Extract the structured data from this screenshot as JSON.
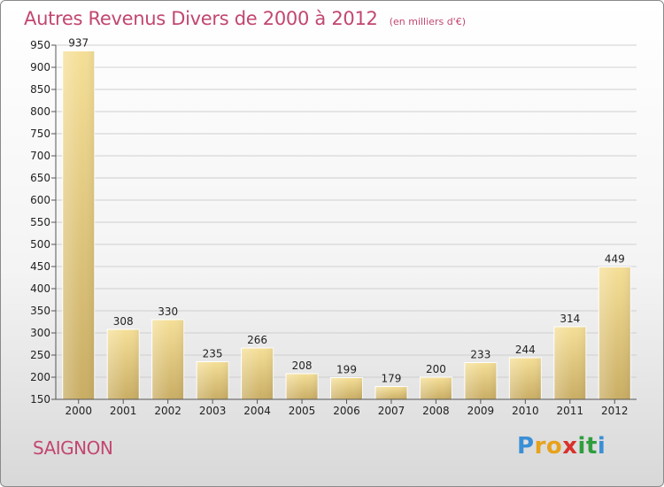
{
  "title": "Autres Revenus Divers de 2000 à 2012",
  "subtitle": "(en milliers d'€)",
  "place": "SAIGNON",
  "logo": {
    "letters": [
      "P",
      "r",
      "o",
      "x",
      "i",
      "t",
      "i"
    ],
    "colors": [
      "#3b8fd6",
      "#e7a21c",
      "#e7a21c",
      "#d9312b",
      "#2f9e3e",
      "#2f9e3e",
      "#3b8fd6"
    ]
  },
  "colors": {
    "title": "#c2476e",
    "bar_light": "#f5df97",
    "bar_dark": "#c9ad64"
  },
  "chart_data": {
    "type": "bar",
    "categories": [
      "2000",
      "2001",
      "2002",
      "2003",
      "2004",
      "2005",
      "2006",
      "2007",
      "2008",
      "2009",
      "2010",
      "2011",
      "2012"
    ],
    "values": [
      937,
      308,
      330,
      235,
      266,
      208,
      199,
      179,
      200,
      233,
      244,
      314,
      449
    ],
    "ylim": [
      150,
      950
    ],
    "yticks": [
      150,
      200,
      250,
      300,
      350,
      400,
      450,
      500,
      550,
      600,
      650,
      700,
      750,
      800,
      850,
      900,
      950
    ],
    "grid": true
  }
}
